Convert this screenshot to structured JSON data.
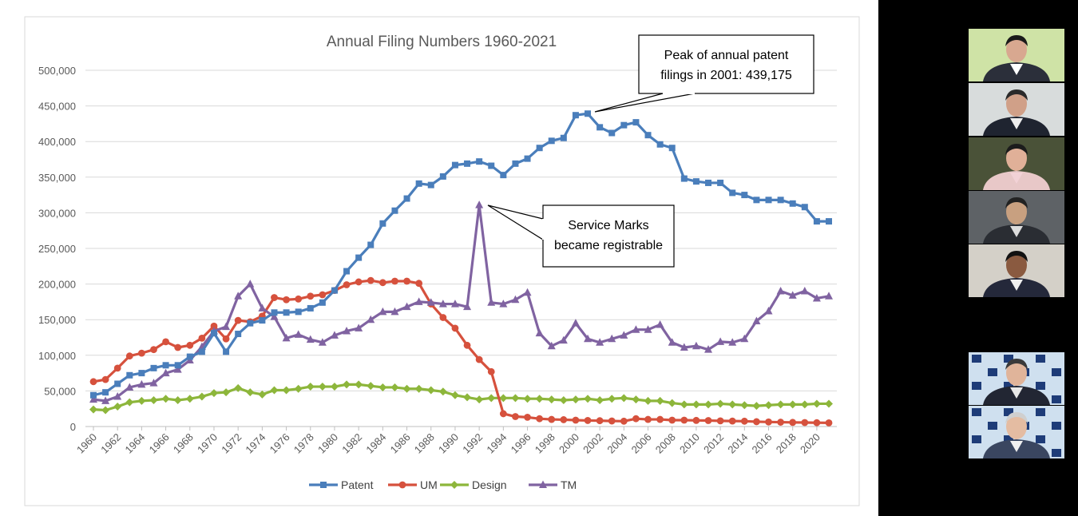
{
  "chart_data": {
    "type": "line",
    "title": "Annual Filing Numbers 1960-2021",
    "xlabel": "",
    "ylabel": "",
    "ylim": [
      0,
      500000
    ],
    "y_ticks": [
      "500,000",
      "450,000",
      "400,000",
      "350,000",
      "300,000",
      "250,000",
      "200,000",
      "150,000",
      "100,000",
      "50,000",
      "0"
    ],
    "x_ticks": [
      "1960",
      "1962",
      "1964",
      "1966",
      "1968",
      "1970",
      "1972",
      "1974",
      "1976",
      "1978",
      "1980",
      "1982",
      "1984",
      "1986",
      "1988",
      "1990",
      "1992",
      "1994",
      "1996",
      "1998",
      "2000",
      "2002",
      "2004",
      "2006",
      "2008",
      "2010",
      "2012",
      "2014",
      "2016",
      "2018",
      "2020"
    ],
    "x": [
      1960,
      1961,
      1962,
      1963,
      1964,
      1965,
      1966,
      1967,
      1968,
      1969,
      1970,
      1971,
      1972,
      1973,
      1974,
      1975,
      1976,
      1977,
      1978,
      1979,
      1980,
      1981,
      1982,
      1983,
      1984,
      1985,
      1986,
      1987,
      1988,
      1989,
      1990,
      1991,
      1992,
      1993,
      1994,
      1995,
      1996,
      1997,
      1998,
      1999,
      2000,
      2001,
      2002,
      2003,
      2004,
      2005,
      2006,
      2007,
      2008,
      2009,
      2010,
      2011,
      2012,
      2013,
      2014,
      2015,
      2016,
      2017,
      2018,
      2019,
      2020,
      2021
    ],
    "grid": true,
    "legend_position": "bottom",
    "series": [
      {
        "name": "Patent",
        "color": "#4a7ebb",
        "marker": "square",
        "values": [
          44000,
          48000,
          60000,
          72000,
          75000,
          82000,
          86000,
          86000,
          98000,
          105000,
          131000,
          105000,
          130000,
          145000,
          149000,
          160000,
          160000,
          161000,
          166000,
          174000,
          191000,
          218000,
          237000,
          255000,
          285000,
          303000,
          320000,
          341000,
          339000,
          351000,
          367000,
          369000,
          372000,
          366000,
          353000,
          369000,
          376000,
          391000,
          401000,
          405000,
          437000,
          439175,
          420000,
          412000,
          423000,
          427000,
          409000,
          396000,
          391000,
          348000,
          344000,
          342000,
          342000,
          328000,
          325000,
          318000,
          318000,
          318000,
          313000,
          308000,
          288000,
          288000
        ]
      },
      {
        "name": "UM",
        "color": "#d6513d",
        "marker": "circle",
        "values": [
          63000,
          66000,
          82000,
          99000,
          103000,
          108000,
          119000,
          111000,
          114000,
          124000,
          141000,
          123000,
          149000,
          147000,
          155000,
          181000,
          178000,
          179000,
          183000,
          185000,
          191000,
          199000,
          203000,
          205000,
          202000,
          204000,
          204000,
          201000,
          172000,
          153000,
          138000,
          114000,
          94000,
          77000,
          18000,
          14000,
          13000,
          11000,
          10000,
          9600,
          9000,
          8500,
          8200,
          7800,
          7500,
          11000,
          10000,
          10000,
          9000,
          9000,
          8600,
          8400,
          8000,
          7700,
          7500,
          6800,
          6400,
          6100,
          5800,
          5600,
          5400,
          5200
        ]
      },
      {
        "name": "Design",
        "color": "#8db63b",
        "marker": "diamond",
        "values": [
          24000,
          23000,
          28000,
          34000,
          36000,
          37000,
          39000,
          37000,
          39000,
          42000,
          47000,
          48000,
          54000,
          48000,
          45000,
          51000,
          51000,
          53000,
          56000,
          56000,
          56000,
          59000,
          59000,
          57000,
          55000,
          55000,
          53000,
          53000,
          51000,
          49000,
          44000,
          41000,
          38000,
          40000,
          40000,
          40000,
          39000,
          39000,
          38000,
          37000,
          38000,
          39000,
          37000,
          39000,
          40000,
          38000,
          36000,
          36000,
          33000,
          31000,
          31000,
          31000,
          32000,
          31000,
          30000,
          29000,
          30000,
          31000,
          31000,
          31000,
          32000,
          32000
        ]
      },
      {
        "name": "TM",
        "color": "#8063a1",
        "marker": "triangle",
        "values": [
          38000,
          36000,
          42000,
          55000,
          59000,
          61000,
          75000,
          80000,
          93000,
          112000,
          134000,
          140000,
          183000,
          200000,
          166000,
          154000,
          124000,
          129000,
          122000,
          118000,
          128000,
          134000,
          138000,
          150000,
          161000,
          161000,
          168000,
          175000,
          174000,
          172000,
          172000,
          168000,
          311000,
          174000,
          172000,
          178000,
          188000,
          131000,
          113000,
          121000,
          145000,
          123000,
          118000,
          123000,
          128000,
          136000,
          136000,
          143000,
          118000,
          111000,
          113000,
          108000,
          119000,
          118000,
          123000,
          148000,
          162000,
          190000,
          184000,
          190000,
          180000,
          183000
        ]
      }
    ],
    "annotations": [
      {
        "id": "peak",
        "text_lines": [
          "Peak of annual patent",
          "filings in 2001: 439,175"
        ],
        "target_year": 2001,
        "target_value": 439175
      },
      {
        "id": "service",
        "text_lines": [
          "Service Marks",
          "became registrable"
        ],
        "target_year": 1992,
        "target_value": 311000
      }
    ]
  },
  "participants": {
    "tiles": [
      {
        "id": "p1",
        "bg": "#cfe3a6",
        "suit": "#2b2f3a",
        "skin": "#d8a890",
        "hair": "#1a1a1a",
        "shirt": "#ffffff"
      },
      {
        "id": "p2",
        "bg": "#d8dcdc",
        "suit": "#1f2430",
        "skin": "#d0a088",
        "hair": "#2a2a2a",
        "shirt": "#eeeeee"
      },
      {
        "id": "p3",
        "bg": "#4a5238",
        "suit": "#e8c8c8",
        "skin": "#e0b098",
        "hair": "#1c1c1c",
        "shirt": "#f2d2d6"
      },
      {
        "id": "p4",
        "bg": "#5e6266",
        "suit": "#2a2d33",
        "skin": "#c8a080",
        "hair": "#222222",
        "shirt": "#dddddd"
      },
      {
        "id": "p5",
        "bg": "#d4d0c8",
        "suit": "#24283a",
        "skin": "#8a5a40",
        "hair": "#111111",
        "shirt": "#f0f0f0"
      },
      {
        "id": "p6",
        "bg": "#cfe0ef",
        "suit": "#222633",
        "skin": "#e0b49a",
        "hair": "#3a3a3a",
        "shirt": "#e8e8e8",
        "pattern": true
      },
      {
        "id": "p7",
        "bg": "#cfe0ef",
        "suit": "#3a4660",
        "skin": "#e4bca2",
        "hair": "#cfcfcf",
        "shirt": "#f0f0f0",
        "pattern": true
      }
    ]
  }
}
